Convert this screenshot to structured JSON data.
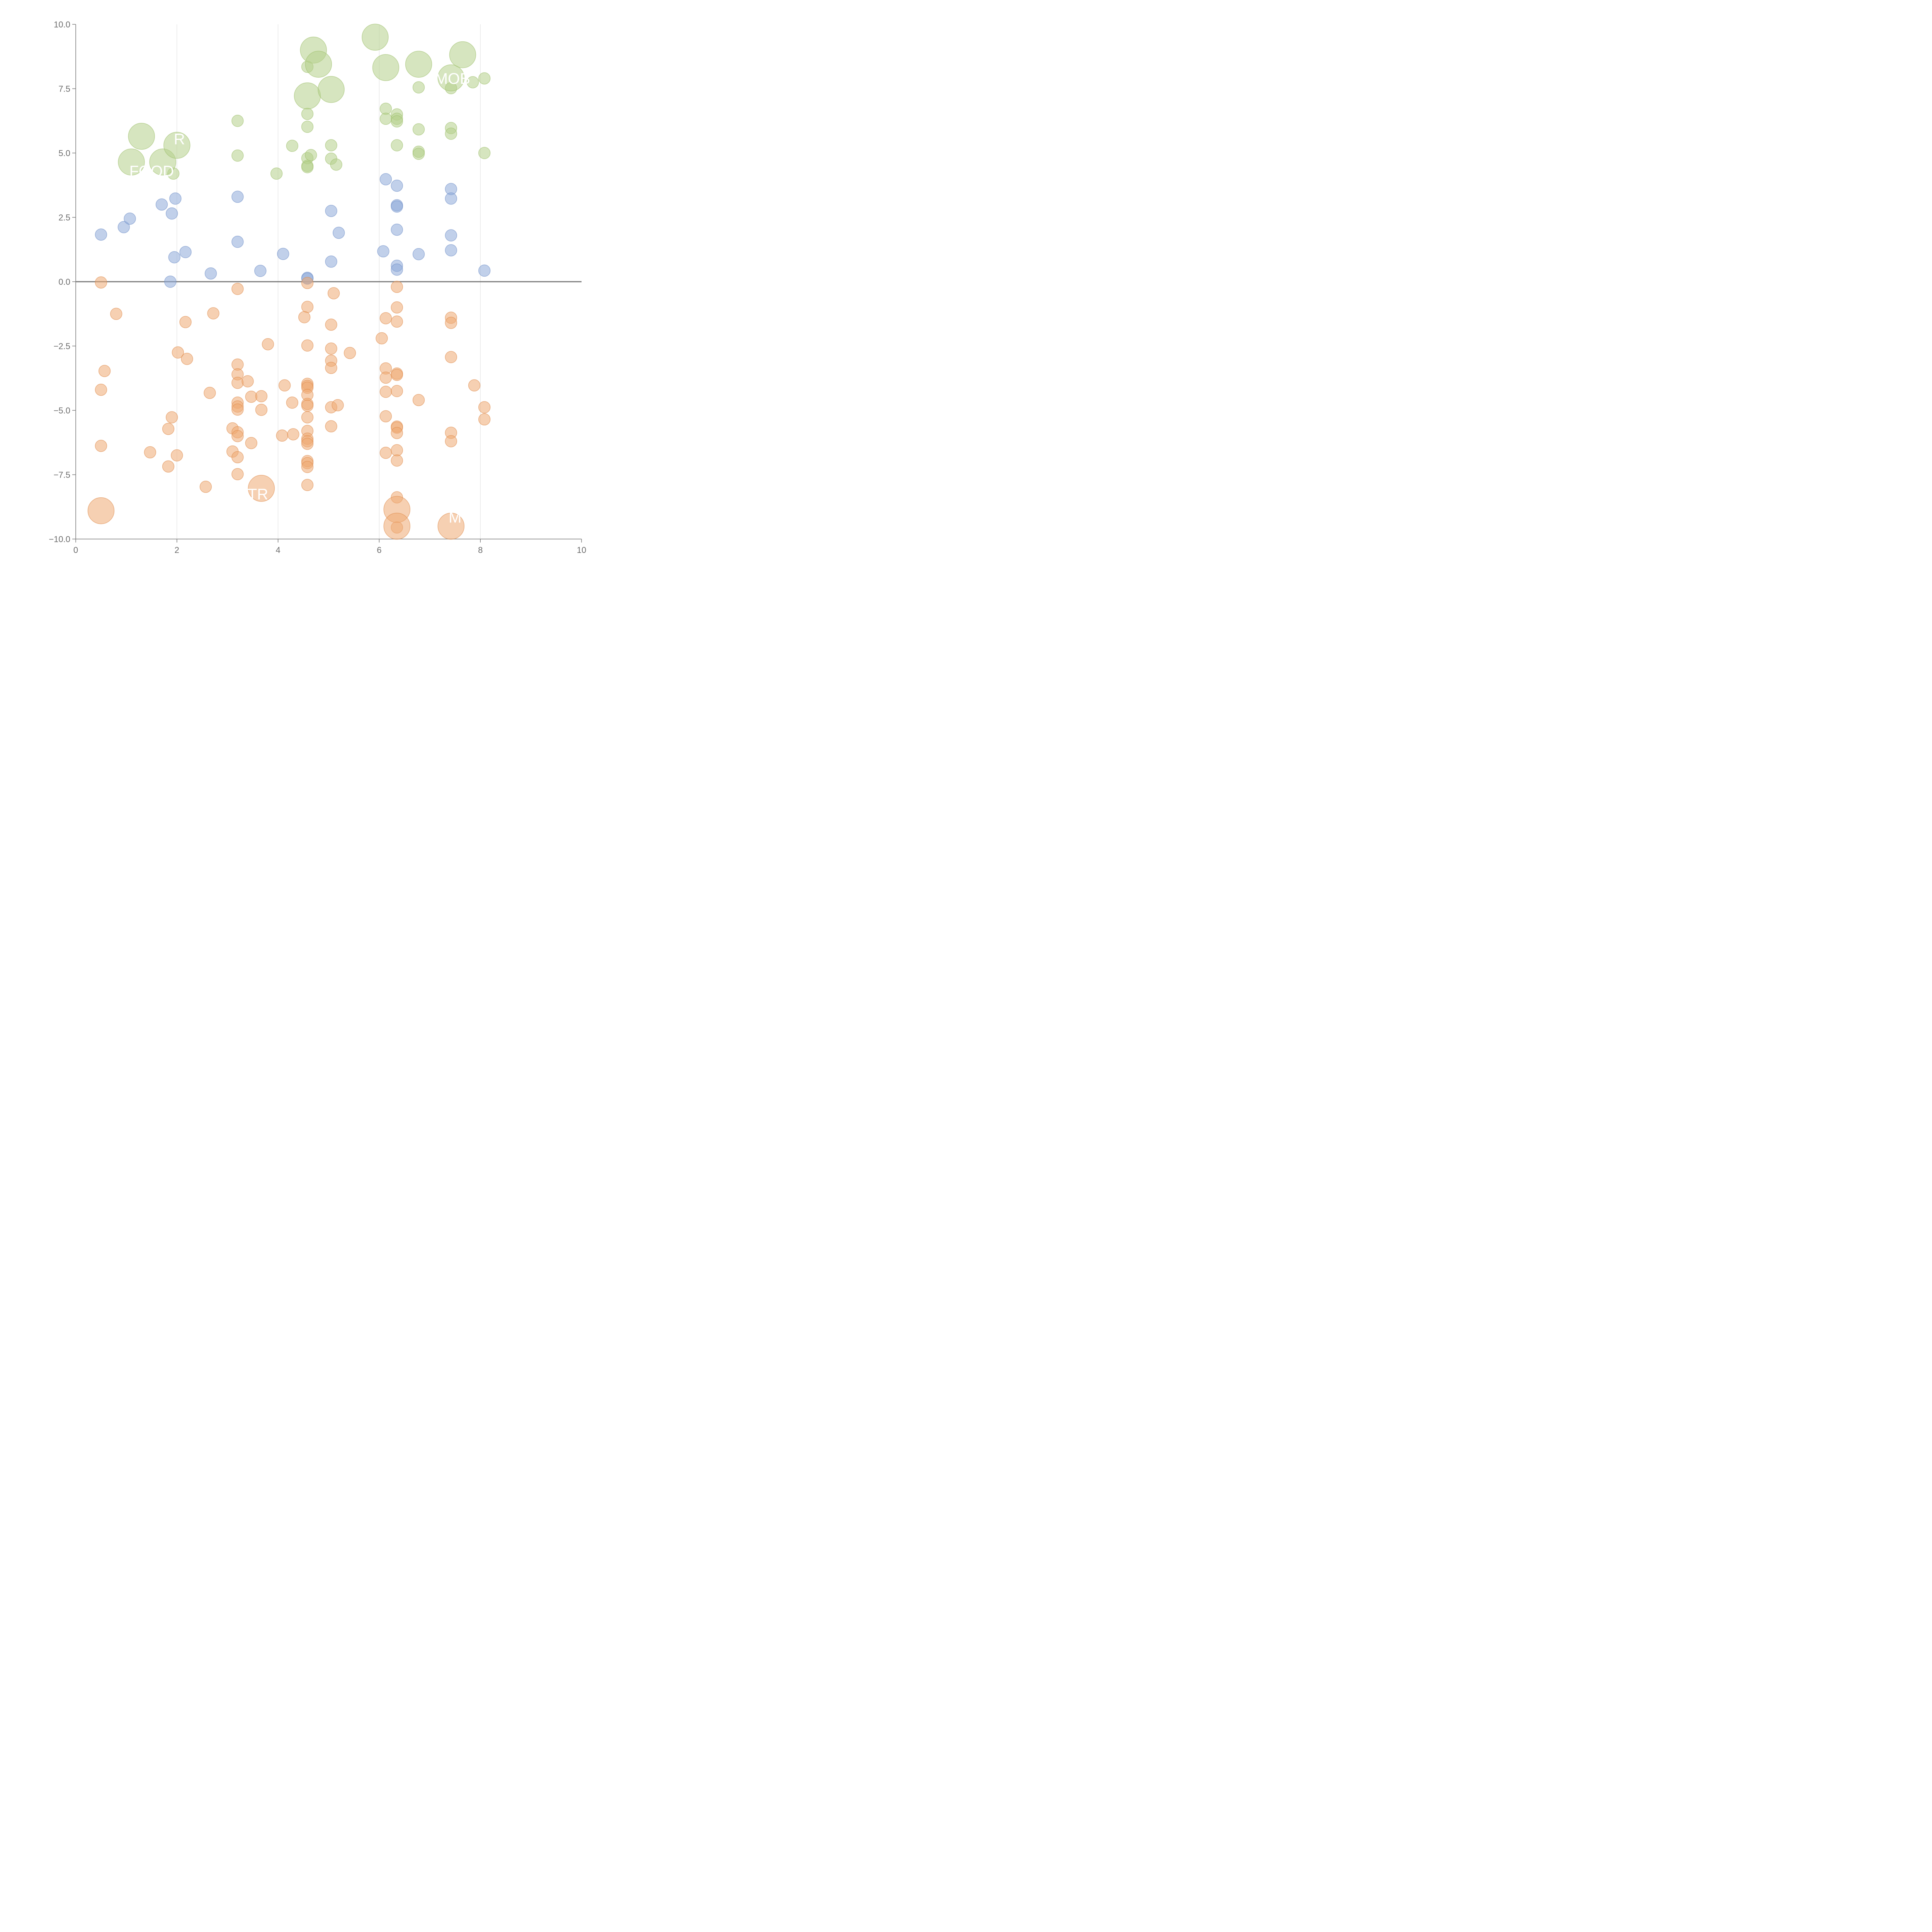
{
  "chart_data": {
    "type": "scatter",
    "title": "",
    "xlabel": "",
    "ylabel": "",
    "xlim": [
      0,
      10
    ],
    "ylim": [
      -10,
      10
    ],
    "x_ticks": [
      0,
      2,
      4,
      6,
      8,
      10
    ],
    "y_ticks": [
      -10,
      -7.5,
      -5,
      -2.5,
      0,
      2.5,
      5,
      7.5,
      10
    ],
    "x_tick_labels": [
      "0",
      "2",
      "4",
      "6",
      "8",
      "10"
    ],
    "y_tick_labels": [
      "−10.0",
      "−7.5",
      "−5.0",
      "−2.5",
      "0.0",
      "2.5",
      "5.0",
      "7.5",
      "10.0"
    ],
    "grid": {
      "x": true,
      "y": false
    },
    "colors": {
      "green": "#b5d08a",
      "blue": "#8eaad8",
      "orange": "#eeaa72",
      "axis": "#7a7a7a",
      "grid": "#dddddd",
      "label": "#ffffff"
    },
    "series": [
      {
        "name": "green",
        "color": "#b5d08a",
        "points": [
          [
            1.1,
            4.65,
            1
          ],
          [
            1.3,
            5.65,
            1
          ],
          [
            1.72,
            4.65,
            1
          ],
          [
            2.0,
            5.3,
            1
          ],
          [
            1.93,
            4.2,
            0
          ],
          [
            3.2,
            6.25,
            0
          ],
          [
            3.2,
            4.9,
            0
          ],
          [
            3.97,
            4.2,
            0
          ],
          [
            4.28,
            5.28,
            0
          ],
          [
            4.58,
            8.35,
            0
          ],
          [
            4.7,
            9.0,
            1
          ],
          [
            4.8,
            8.45,
            1
          ],
          [
            4.58,
            7.22,
            1
          ],
          [
            5.05,
            7.47,
            1
          ],
          [
            4.58,
            6.52,
            0
          ],
          [
            4.58,
            6.02,
            0
          ],
          [
            4.58,
            4.8,
            0
          ],
          [
            4.58,
            4.5,
            0
          ],
          [
            4.58,
            4.45,
            0
          ],
          [
            4.65,
            4.92,
            0
          ],
          [
            5.05,
            5.3,
            0
          ],
          [
            5.05,
            4.78,
            0
          ],
          [
            5.15,
            4.55,
            0
          ],
          [
            5.92,
            9.5,
            1
          ],
          [
            6.13,
            8.32,
            1
          ],
          [
            6.13,
            6.72,
            0
          ],
          [
            6.13,
            6.33,
            0
          ],
          [
            6.35,
            6.5,
            0
          ],
          [
            6.35,
            6.33,
            0
          ],
          [
            6.35,
            6.23,
            0
          ],
          [
            6.35,
            5.3,
            0
          ],
          [
            6.78,
            8.45,
            1
          ],
          [
            6.78,
            7.55,
            0
          ],
          [
            6.78,
            5.92,
            0
          ],
          [
            6.78,
            5.05,
            0
          ],
          [
            6.78,
            4.97,
            0
          ],
          [
            7.42,
            7.92,
            1
          ],
          [
            7.42,
            7.52,
            0
          ],
          [
            7.42,
            5.97,
            0
          ],
          [
            7.42,
            5.75,
            0
          ],
          [
            7.65,
            8.82,
            1
          ],
          [
            7.85,
            7.75,
            0
          ],
          [
            8.08,
            7.9,
            0
          ],
          [
            8.08,
            5.0,
            0
          ]
        ]
      },
      {
        "name": "blue",
        "color": "#8eaad8",
        "points": [
          [
            0.5,
            1.83,
            0
          ],
          [
            0.95,
            2.12,
            0
          ],
          [
            1.07,
            2.45,
            0
          ],
          [
            1.7,
            3.0,
            0
          ],
          [
            1.9,
            2.65,
            0
          ],
          [
            1.97,
            3.23,
            0
          ],
          [
            1.95,
            0.95,
            0
          ],
          [
            1.87,
            0.0,
            0
          ],
          [
            2.17,
            1.15,
            0
          ],
          [
            2.67,
            0.32,
            0
          ],
          [
            3.2,
            3.3,
            0
          ],
          [
            3.2,
            1.55,
            0
          ],
          [
            3.65,
            0.42,
            0
          ],
          [
            4.1,
            1.08,
            0
          ],
          [
            4.58,
            0.15,
            0
          ],
          [
            4.58,
            0.12,
            0
          ],
          [
            5.05,
            2.75,
            0
          ],
          [
            5.05,
            0.78,
            0
          ],
          [
            5.2,
            1.9,
            0
          ],
          [
            6.13,
            3.98,
            0
          ],
          [
            6.08,
            1.18,
            0
          ],
          [
            6.35,
            3.73,
            0
          ],
          [
            6.35,
            2.97,
            0
          ],
          [
            6.35,
            2.92,
            0
          ],
          [
            6.35,
            2.02,
            0
          ],
          [
            6.35,
            0.62,
            0
          ],
          [
            6.35,
            0.47,
            0
          ],
          [
            6.78,
            1.07,
            0
          ],
          [
            7.42,
            3.6,
            0
          ],
          [
            7.42,
            3.23,
            0
          ],
          [
            7.42,
            1.8,
            0
          ],
          [
            7.42,
            1.22,
            0
          ],
          [
            8.08,
            0.43,
            0
          ]
        ]
      },
      {
        "name": "orange",
        "color": "#eeaa72",
        "points": [
          [
            0.5,
            -0.03,
            0
          ],
          [
            0.8,
            -1.25,
            0
          ],
          [
            0.57,
            -3.47,
            0
          ],
          [
            0.5,
            -4.2,
            0
          ],
          [
            0.5,
            -6.38,
            0
          ],
          [
            0.5,
            -8.9,
            1
          ],
          [
            1.47,
            -6.63,
            0
          ],
          [
            1.83,
            -5.72,
            0
          ],
          [
            1.83,
            -7.18,
            0
          ],
          [
            1.9,
            -5.27,
            0
          ],
          [
            2.02,
            -2.75,
            0
          ],
          [
            2.17,
            -1.57,
            0
          ],
          [
            2.2,
            -3.0,
            0
          ],
          [
            2.0,
            -6.75,
            0
          ],
          [
            2.57,
            -7.97,
            0
          ],
          [
            2.65,
            -4.32,
            0
          ],
          [
            2.72,
            -1.23,
            0
          ],
          [
            3.2,
            -0.28,
            0
          ],
          [
            3.2,
            -3.22,
            0
          ],
          [
            3.2,
            -3.6,
            0
          ],
          [
            3.2,
            -3.93,
            0
          ],
          [
            3.1,
            -5.7,
            0
          ],
          [
            3.2,
            -5.85,
            0
          ],
          [
            3.2,
            -6.0,
            0
          ],
          [
            3.2,
            -4.7,
            0
          ],
          [
            3.2,
            -4.85,
            0
          ],
          [
            3.2,
            -4.97,
            0
          ],
          [
            3.1,
            -6.6,
            0
          ],
          [
            3.2,
            -6.82,
            0
          ],
          [
            3.2,
            -7.48,
            0
          ],
          [
            3.4,
            -3.87,
            0
          ],
          [
            3.47,
            -4.47,
            0
          ],
          [
            3.47,
            -6.27,
            0
          ],
          [
            3.67,
            -4.45,
            0
          ],
          [
            3.67,
            -4.98,
            0
          ],
          [
            3.67,
            -8.03,
            1
          ],
          [
            3.8,
            -2.43,
            0
          ],
          [
            4.08,
            -5.98,
            0
          ],
          [
            4.13,
            -4.03,
            0
          ],
          [
            4.28,
            -4.7,
            0
          ],
          [
            4.3,
            -5.93,
            0
          ],
          [
            4.58,
            -0.05,
            0
          ],
          [
            4.58,
            -0.98,
            0
          ],
          [
            4.52,
            -1.38,
            0
          ],
          [
            4.58,
            -2.48,
            0
          ],
          [
            4.58,
            -3.97,
            0
          ],
          [
            4.58,
            -4.05,
            0
          ],
          [
            4.58,
            -4.12,
            0
          ],
          [
            4.58,
            -4.4,
            0
          ],
          [
            4.58,
            -4.75,
            0
          ],
          [
            4.58,
            -4.82,
            0
          ],
          [
            4.58,
            -5.27,
            0
          ],
          [
            4.58,
            -5.8,
            0
          ],
          [
            4.58,
            -6.1,
            0
          ],
          [
            4.58,
            -6.2,
            0
          ],
          [
            4.58,
            -6.3,
            0
          ],
          [
            4.58,
            -6.97,
            0
          ],
          [
            4.58,
            -7.05,
            0
          ],
          [
            4.58,
            -7.2,
            0
          ],
          [
            4.58,
            -7.9,
            0
          ],
          [
            5.1,
            -0.45,
            0
          ],
          [
            5.05,
            -1.67,
            0
          ],
          [
            5.05,
            -2.6,
            0
          ],
          [
            5.05,
            -3.07,
            0
          ],
          [
            5.05,
            -3.35,
            0
          ],
          [
            5.05,
            -4.88,
            0
          ],
          [
            5.05,
            -5.62,
            0
          ],
          [
            5.18,
            -4.8,
            0
          ],
          [
            5.42,
            -2.77,
            0
          ],
          [
            6.05,
            -2.2,
            0
          ],
          [
            6.13,
            -1.42,
            0
          ],
          [
            6.13,
            -3.37,
            0
          ],
          [
            6.13,
            -3.73,
            0
          ],
          [
            6.13,
            -4.28,
            0
          ],
          [
            6.13,
            -5.23,
            0
          ],
          [
            6.13,
            -6.65,
            0
          ],
          [
            6.35,
            -0.2,
            0
          ],
          [
            6.35,
            -1.0,
            0
          ],
          [
            6.35,
            -1.55,
            0
          ],
          [
            6.35,
            -3.57,
            0
          ],
          [
            6.35,
            -3.62,
            0
          ],
          [
            6.35,
            -4.25,
            0
          ],
          [
            6.35,
            -5.63,
            0
          ],
          [
            6.35,
            -5.67,
            0
          ],
          [
            6.35,
            -5.88,
            0
          ],
          [
            6.35,
            -6.55,
            0
          ],
          [
            6.35,
            -6.95,
            0
          ],
          [
            6.35,
            -8.38,
            0
          ],
          [
            6.35,
            -8.85,
            1
          ],
          [
            6.35,
            -9.5,
            1
          ],
          [
            6.35,
            -9.55,
            0
          ],
          [
            6.78,
            -4.6,
            0
          ],
          [
            7.42,
            -1.4,
            0
          ],
          [
            7.42,
            -1.6,
            0
          ],
          [
            7.42,
            -2.93,
            0
          ],
          [
            7.42,
            -5.87,
            0
          ],
          [
            7.42,
            -6.2,
            0
          ],
          [
            7.42,
            -9.5,
            1
          ],
          [
            7.88,
            -4.03,
            0
          ],
          [
            8.08,
            -4.88,
            0
          ],
          [
            8.08,
            -5.35,
            0
          ]
        ]
      }
    ],
    "annotations": [
      {
        "text": "FOOD",
        "x": 1.5,
        "y": 4.3
      },
      {
        "text": "R",
        "x": 2.05,
        "y": 5.55
      },
      {
        "text": "MOB",
        "x": 7.45,
        "y": 7.9
      },
      {
        "text": "STR",
        "x": 3.5,
        "y": -8.25
      },
      {
        "text": "M",
        "x": 7.5,
        "y": -9.15
      }
    ]
  }
}
